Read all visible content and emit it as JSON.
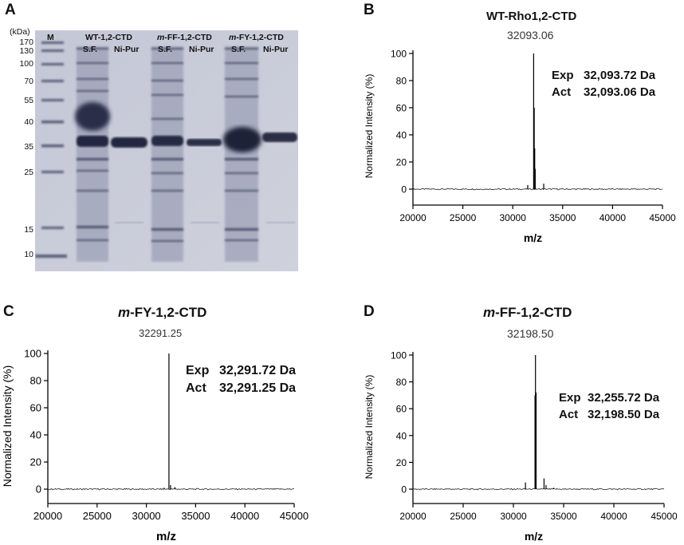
{
  "panel_a": {
    "letter": "A",
    "kda_label": "(kDa)",
    "marker_label": "M",
    "groups": [
      {
        "name": "WT-1,2-CTD",
        "prefix": "",
        "sf": "S.F.",
        "ni": "Ni-Pur"
      },
      {
        "name": "-FF-1,2-CTD",
        "prefix": "m",
        "sf": "S.F.",
        "ni": "Ni-Pur"
      },
      {
        "name": "-FY-1,2-CTD",
        "prefix": "m",
        "sf": "S.F.",
        "ni": "Ni-Pur"
      }
    ],
    "markers": [
      "170",
      "130",
      "100",
      "70",
      "55",
      "40",
      "35",
      "25",
      "15",
      "10"
    ]
  },
  "chart_data": [
    {
      "letter": "B",
      "type": "line",
      "title": "WT-Rho1,2-CTD",
      "title_prefix": "",
      "peak_label": "32093.06",
      "xlabel": "m/z",
      "ylabel": "Normalized Intensity (%)",
      "xlim": [
        20000,
        45000
      ],
      "ylim": [
        0,
        100
      ],
      "xticks": [
        20000,
        25000,
        30000,
        35000,
        40000,
        45000
      ],
      "yticks": [
        0,
        20,
        40,
        60,
        80,
        100
      ],
      "exp_label": "Exp",
      "exp_value": "32,093.72 Da",
      "act_label": "Act",
      "act_value": "32,093.06 Da",
      "peaks": [
        [
          31500,
          3
        ],
        [
          32093,
          100
        ],
        [
          32150,
          60
        ],
        [
          32200,
          30
        ],
        [
          32250,
          15
        ],
        [
          33100,
          4
        ]
      ]
    },
    {
      "letter": "C",
      "type": "line",
      "title": "-FY-1,2-CTD",
      "title_prefix": "m",
      "peak_label": "32291.25",
      "xlabel": "m/z",
      "ylabel": "Normalized Intensity (%)",
      "xlim": [
        20000,
        45000
      ],
      "ylim": [
        0,
        100
      ],
      "xticks": [
        20000,
        25000,
        30000,
        35000,
        40000,
        45000
      ],
      "yticks": [
        0,
        20,
        40,
        60,
        80,
        100
      ],
      "exp_label": "Exp",
      "exp_value": "32,291.72 Da",
      "act_label": "Act",
      "act_value": "32,291.25 Da",
      "peaks": [
        [
          31800,
          1
        ],
        [
          32291,
          100
        ],
        [
          32450,
          3
        ],
        [
          32900,
          1.5
        ]
      ]
    },
    {
      "letter": "D",
      "type": "line",
      "title": "-FF-1,2-CTD",
      "title_prefix": "m",
      "peak_label": "32198.50",
      "xlabel": "m/z",
      "ylabel": "Normalized Intensity (%)",
      "xlim": [
        20000,
        45000
      ],
      "ylim": [
        0,
        100
      ],
      "xticks": [
        20000,
        25000,
        30000,
        35000,
        40000,
        45000
      ],
      "yticks": [
        0,
        20,
        40,
        60,
        80,
        100
      ],
      "exp_label": "Exp",
      "exp_value": "32,255.72 Da",
      "act_label": "Act",
      "act_value": "32,198.50 Da",
      "peaks": [
        [
          31200,
          5
        ],
        [
          32150,
          70
        ],
        [
          32198,
          100
        ],
        [
          32260,
          72
        ],
        [
          33050,
          8
        ],
        [
          33250,
          3
        ],
        [
          34000,
          1
        ]
      ]
    }
  ]
}
